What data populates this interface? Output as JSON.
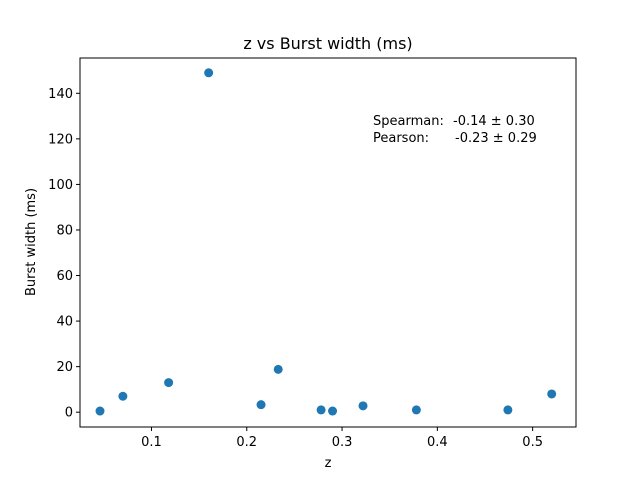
{
  "chart_data": {
    "type": "scatter",
    "title": "z vs Burst width (ms)",
    "xlabel": "z",
    "ylabel": "Burst width (ms)",
    "xlim": [
      0.025,
      0.5455
    ],
    "ylim": [
      -6.5,
      155.5
    ],
    "xticks": [
      0.1,
      0.2,
      0.3,
      0.4,
      0.5
    ],
    "xtick_labels": [
      "0.1",
      "0.2",
      "0.3",
      "0.4",
      "0.5"
    ],
    "yticks": [
      0,
      20,
      40,
      60,
      80,
      100,
      120,
      140
    ],
    "ytick_labels": [
      "0",
      "20",
      "40",
      "60",
      "80",
      "100",
      "120",
      "140"
    ],
    "grid": false,
    "marker_color": "#1f77b4",
    "series": [
      {
        "x": [
          0.046,
          0.07,
          0.118,
          0.16,
          0.215,
          0.233,
          0.278,
          0.29,
          0.322,
          0.378,
          0.474,
          0.52
        ],
        "y": [
          0.5,
          7.0,
          13.0,
          149.0,
          3.3,
          18.8,
          1.0,
          0.5,
          2.8,
          1.0,
          1.0,
          8.0
        ]
      }
    ],
    "annotations": [
      {
        "label": "Spearman:",
        "value": "-0.14 ± 0.30"
      },
      {
        "label": "Pearson:",
        "value": "-0.23 ± 0.29"
      }
    ]
  }
}
